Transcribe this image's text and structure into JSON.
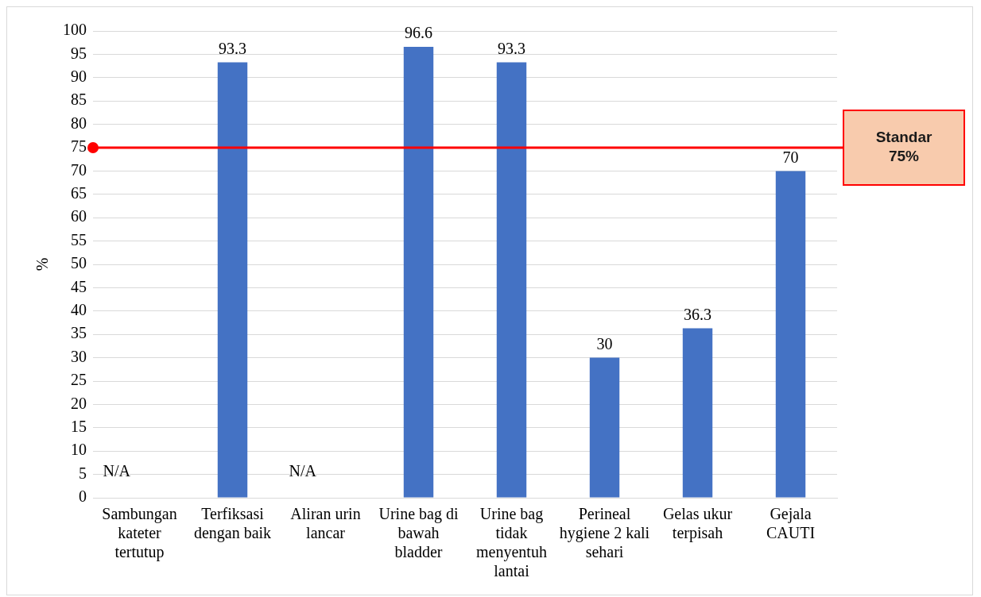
{
  "chart_data": {
    "type": "bar",
    "ylabel": "%",
    "categories": [
      "Sambungan kateter tertutup",
      "Terfiksasi dengan baik",
      "Aliran urin lancar",
      "Urine bag di bawah bladder",
      "Urine bag tidak menyentuh lantai",
      "Perineal hygiene 2 kali sehari",
      "Gelas ukur terpisah",
      "Gejala CAUTI"
    ],
    "values": [
      null,
      93.3,
      null,
      96.6,
      93.3,
      30,
      36.3,
      70
    ],
    "value_labels": [
      "N/A",
      "93.3",
      "N/A",
      "96.6",
      "93.3",
      "30",
      "36.3",
      "70"
    ],
    "color": "#4472c4",
    "ylim": [
      0,
      100
    ],
    "yticks": [
      0,
      5,
      10,
      15,
      20,
      25,
      30,
      35,
      40,
      45,
      50,
      55,
      60,
      65,
      70,
      75,
      80,
      85,
      90,
      95,
      100
    ],
    "grid": "y",
    "legend": false,
    "ref_lines": [
      {
        "axis": "y",
        "value": 75,
        "label": "Standar 75%",
        "color": "#ff0000"
      }
    ]
  }
}
